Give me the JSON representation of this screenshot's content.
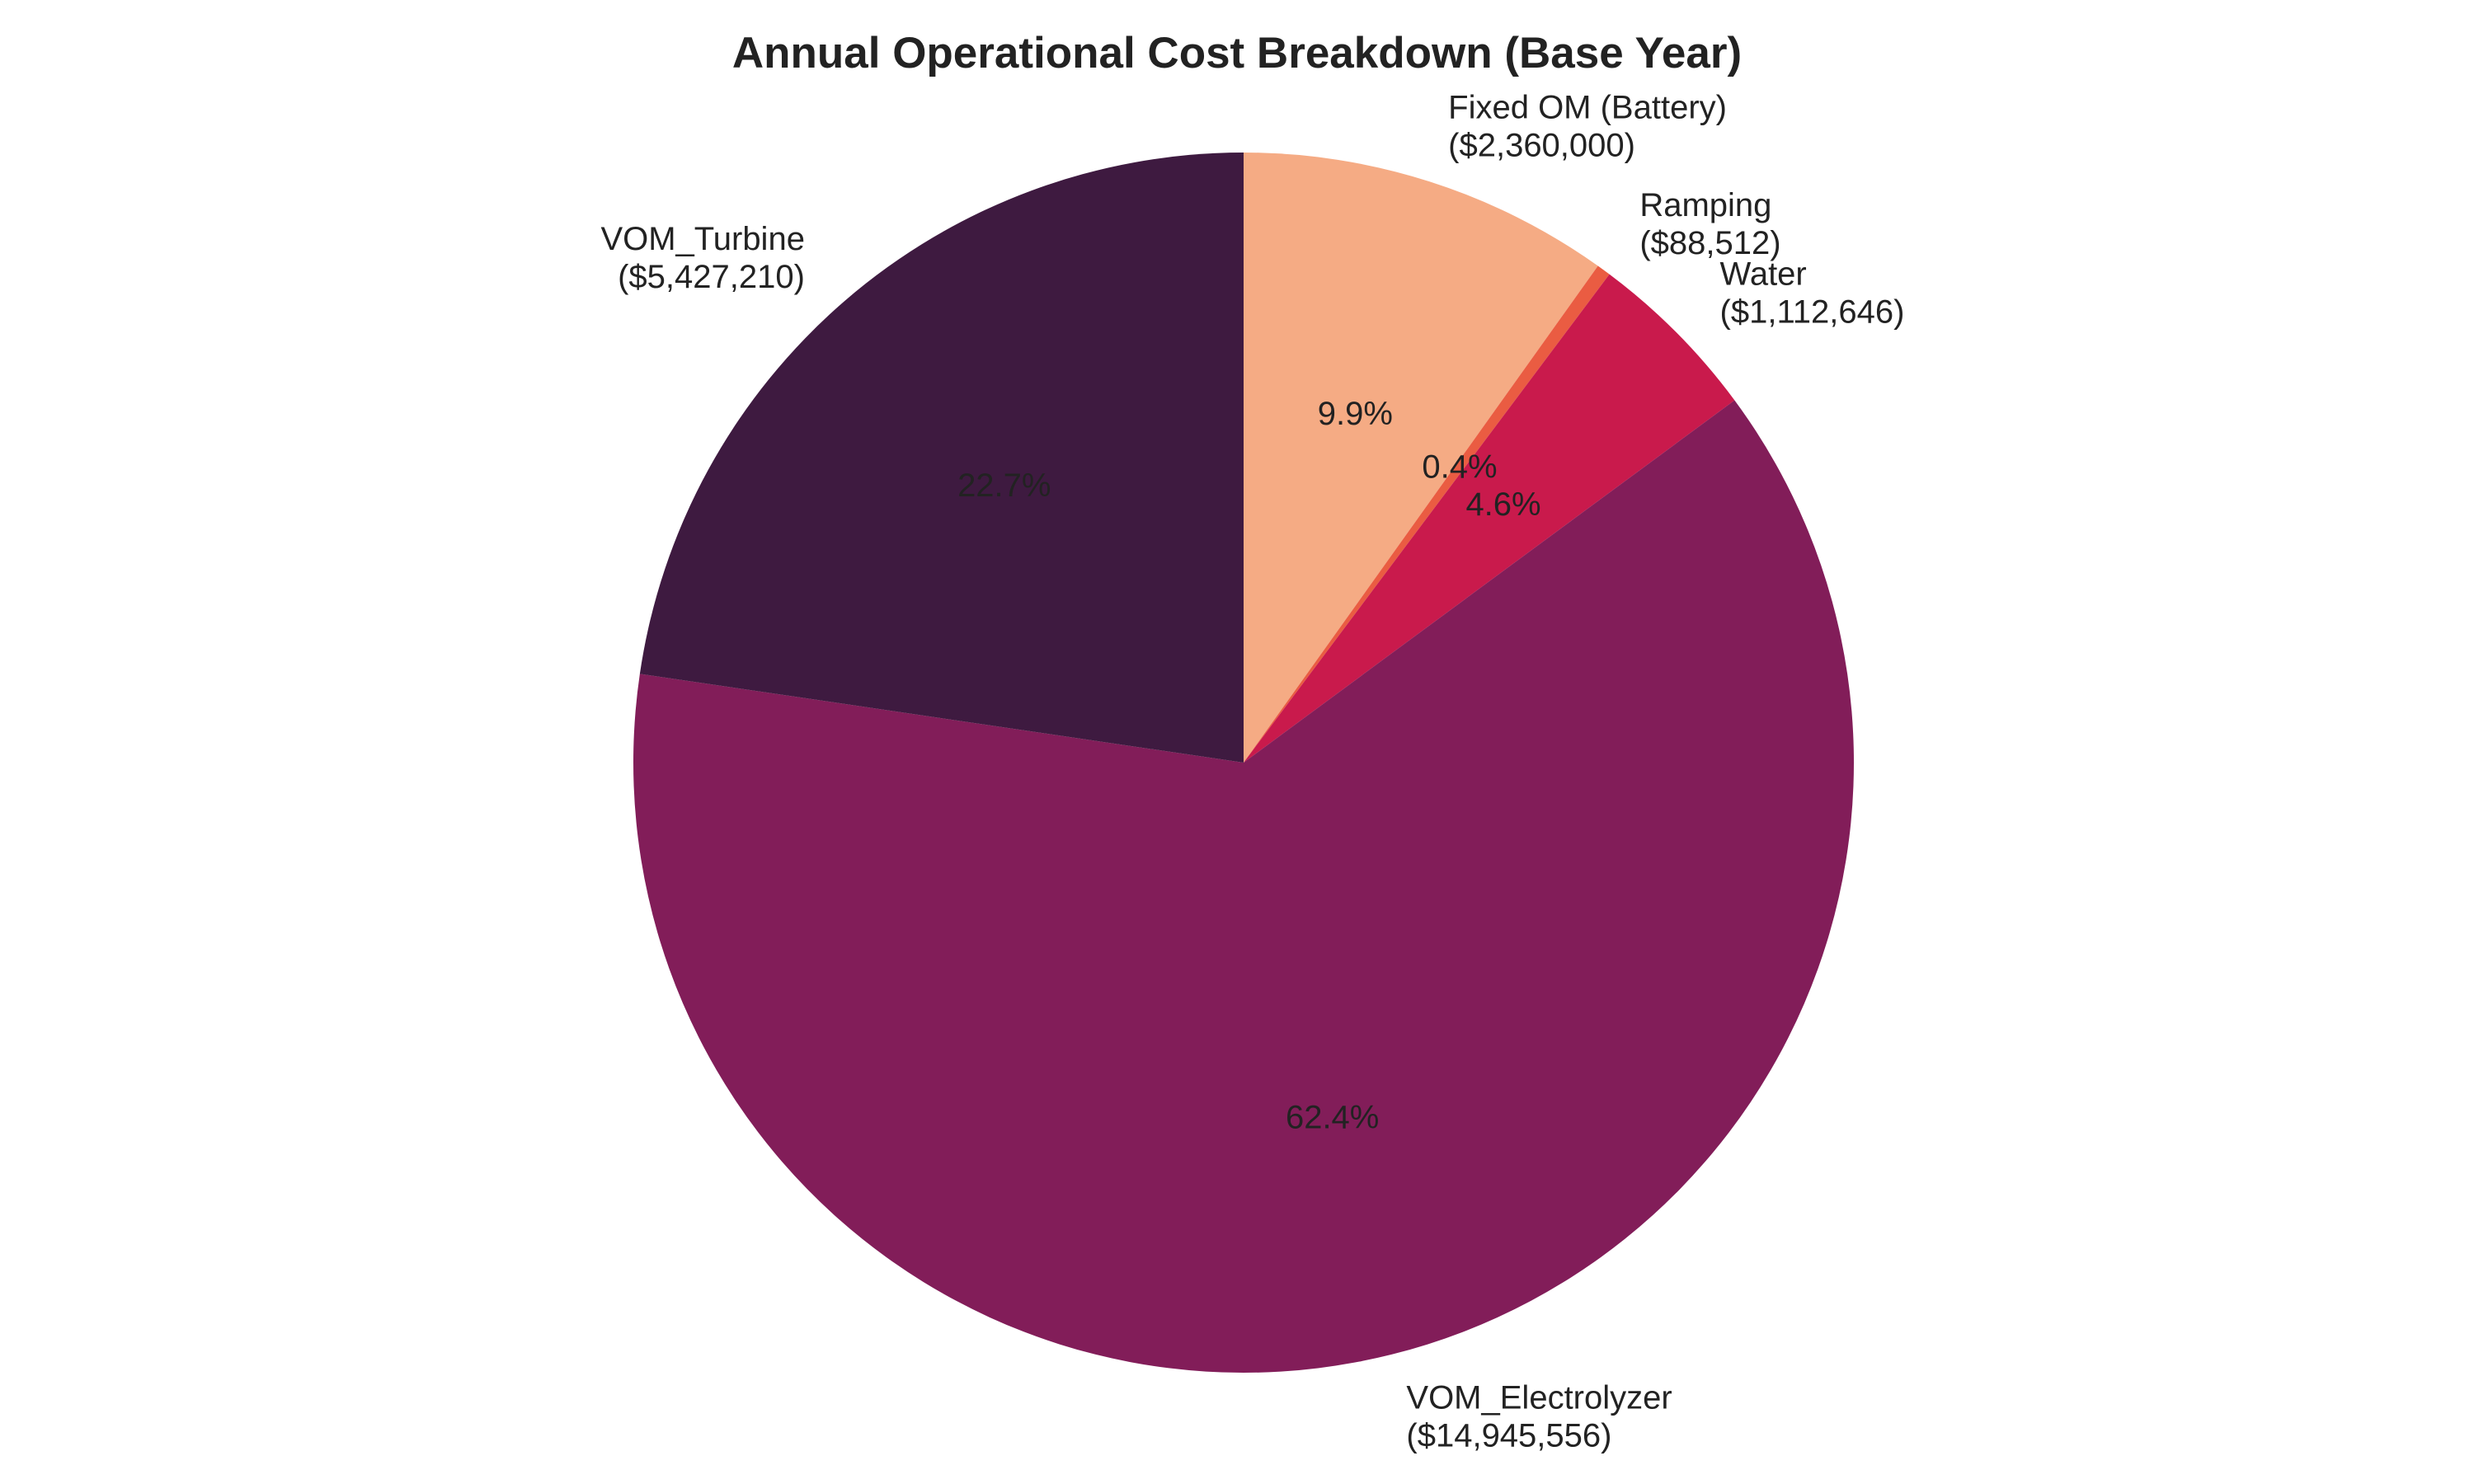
{
  "chart_data": {
    "type": "pie",
    "title": "Annual Operational Cost Breakdown (Base Year)",
    "start_angle_deg": 90,
    "direction": "clockwise",
    "slices": [
      {
        "name": "Fixed OM (Battery)",
        "value": 2360000,
        "value_label": "($2,360,000)",
        "pct_label": "9.9%",
        "color": "#f5ab84"
      },
      {
        "name": "Ramping",
        "value": 88512,
        "value_label": "($88,512)",
        "pct_label": "0.4%",
        "color": "#ea5c42"
      },
      {
        "name": "Water",
        "value": 1112646,
        "value_label": "($1,112,646)",
        "pct_label": "4.6%",
        "color": "#c91a4c"
      },
      {
        "name": "VOM_Electrolyzer",
        "value": 14945556,
        "value_label": "($14,945,556)",
        "pct_label": "62.4%",
        "color": "#821d59"
      },
      {
        "name": "VOM_Turbine",
        "value": 5427210,
        "value_label": "($5,427,210)",
        "pct_label": "22.7%",
        "color": "#3e1a40"
      }
    ]
  }
}
